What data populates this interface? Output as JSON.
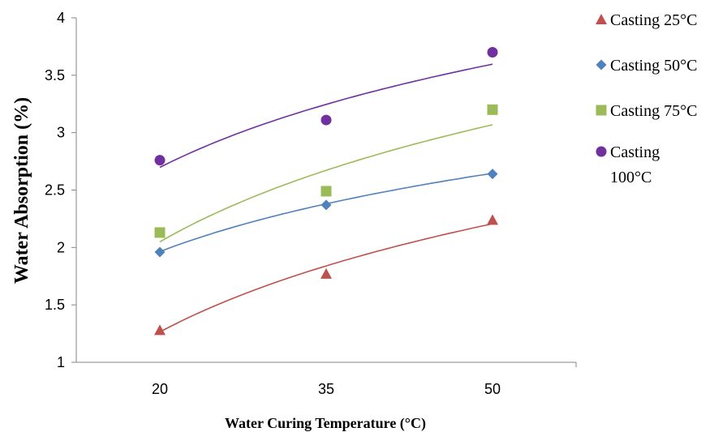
{
  "chart_data": {
    "type": "scatter",
    "xlabel": "Water Curing Temperature (°C)",
    "ylabel": "Water Absorption (%)",
    "categories": [
      "20",
      "35",
      "50"
    ],
    "y_ticks": [
      "1",
      "1.5",
      "2",
      "2.5",
      "3",
      "3.5",
      "4"
    ],
    "ylim": [
      1,
      4
    ],
    "grid": false,
    "legend_position": "right",
    "trendline": "logarithmic",
    "series": [
      {
        "name": "Casting 25°C",
        "legend_lines": [
          "Casting 25°C"
        ],
        "marker": "triangle",
        "color": "#C0504D",
        "values": [
          1.28,
          1.77,
          2.24
        ],
        "trend": [
          1.26,
          1.85,
          2.2
        ]
      },
      {
        "name": "Casting 50°C",
        "legend_lines": [
          "Casting 50°C"
        ],
        "marker": "diamond",
        "color": "#4F81BD",
        "values": [
          1.96,
          2.37,
          2.64
        ],
        "trend": [
          1.96,
          2.39,
          2.64
        ]
      },
      {
        "name": "Casting 75°C",
        "legend_lines": [
          "Casting 75°C"
        ],
        "marker": "square",
        "color": "#9BBB59",
        "values": [
          2.13,
          2.49,
          3.2
        ],
        "trend": [
          2.05,
          2.67,
          3.07
        ]
      },
      {
        "name": "Casting 100°C",
        "legend_lines": [
          "Casting",
          "100°C"
        ],
        "marker": "circle",
        "color": "#7030A0",
        "values": [
          2.76,
          3.11,
          3.7
        ],
        "trend": [
          2.7,
          3.24,
          3.6
        ]
      }
    ]
  }
}
